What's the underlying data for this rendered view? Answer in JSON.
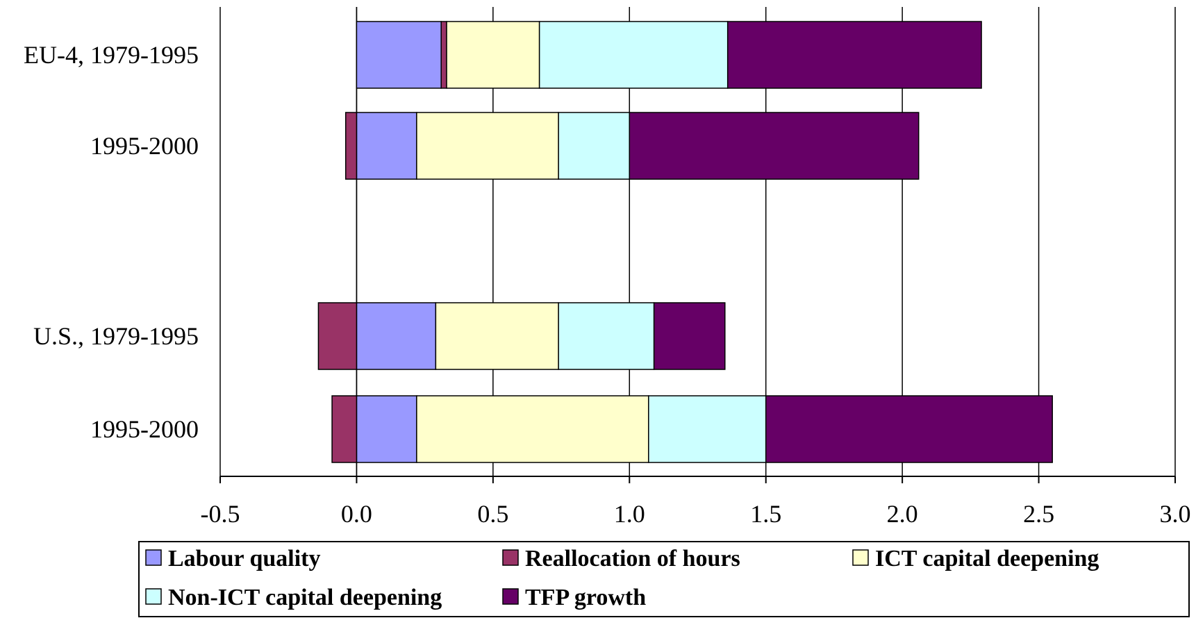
{
  "chart_data": {
    "type": "bar",
    "orientation": "horizontal",
    "stacked": true,
    "categories": [
      "EU-4, 1979-1995",
      "1995-2000",
      "U.S., 1979-1995",
      "1995-2000"
    ],
    "groups": [
      "EU-4",
      "U.S."
    ],
    "series": [
      {
        "name": "Labour quality",
        "values": [
          0.31,
          0.22,
          0.29,
          0.22
        ]
      },
      {
        "name": "Reallocation of hours",
        "values": [
          0.02,
          -0.04,
          -0.14,
          -0.09
        ]
      },
      {
        "name": "ICT capital deepening",
        "values": [
          0.34,
          0.52,
          0.45,
          0.85
        ]
      },
      {
        "name": "Non-ICT capital deepening",
        "values": [
          0.69,
          0.26,
          0.35,
          0.43
        ]
      },
      {
        "name": "TFP growth",
        "values": [
          0.93,
          1.06,
          0.26,
          1.05
        ]
      }
    ],
    "xlim": [
      -0.5,
      3.0
    ],
    "xticks": [
      "-0.5",
      "0.0",
      "0.5",
      "1.0",
      "1.5",
      "2.0",
      "2.5",
      "3.0"
    ],
    "xlabel": "",
    "ylabel": "",
    "title": "",
    "grid": "vertical",
    "legend_position": "bottom",
    "colors": [
      "#9999ff",
      "#993366",
      "#ffffcc",
      "#ccffff",
      "#660066"
    ]
  }
}
